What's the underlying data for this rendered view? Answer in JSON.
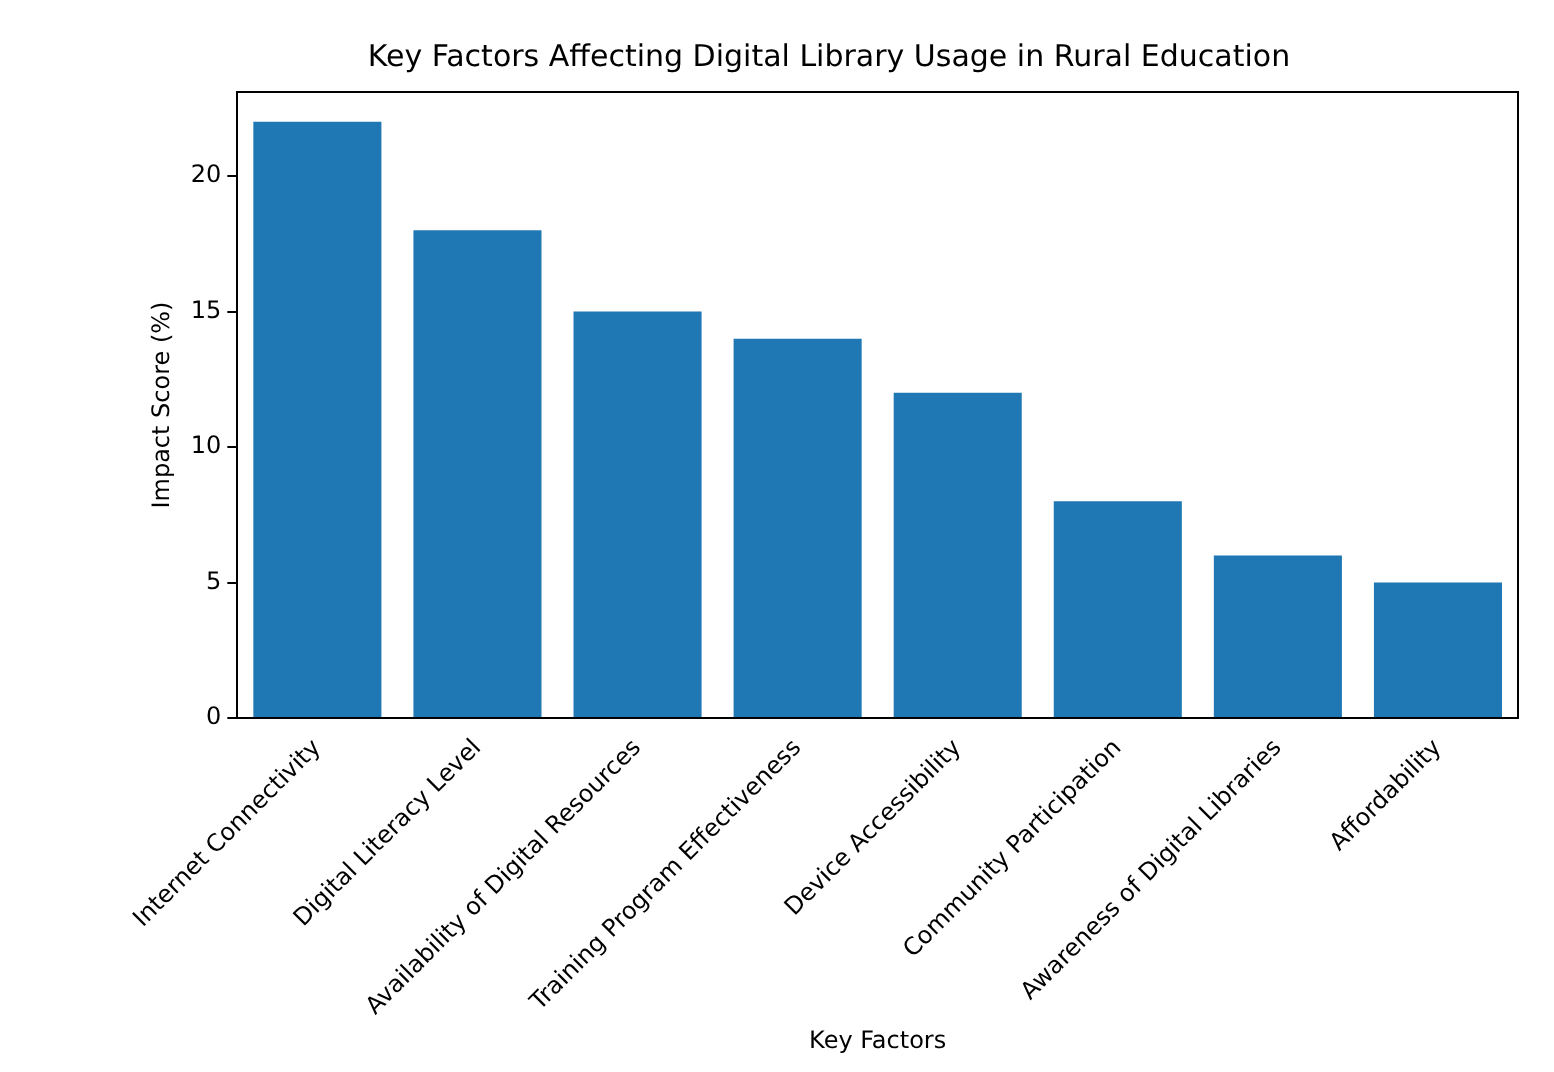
{
  "chart_data": {
    "type": "bar",
    "title": "Key Factors Affecting Digital Library Usage in Rural Education",
    "xlabel": "Key Factors",
    "ylabel": "Impact Score (%)",
    "categories": [
      "Internet Connectivity",
      "Digital Literacy Level",
      "Availability of Digital Resources",
      "Training Program Effectiveness",
      "Device Accessibility",
      "Community Participation",
      "Awareness of Digital Libraries",
      "Affordability"
    ],
    "values": [
      22,
      18,
      15,
      14,
      12,
      8,
      6,
      5
    ],
    "color": "#1f77b4",
    "ylim": [
      0,
      23.1
    ],
    "yticks": [
      0,
      5,
      10,
      15,
      20
    ],
    "grid": false,
    "legend": false
  }
}
